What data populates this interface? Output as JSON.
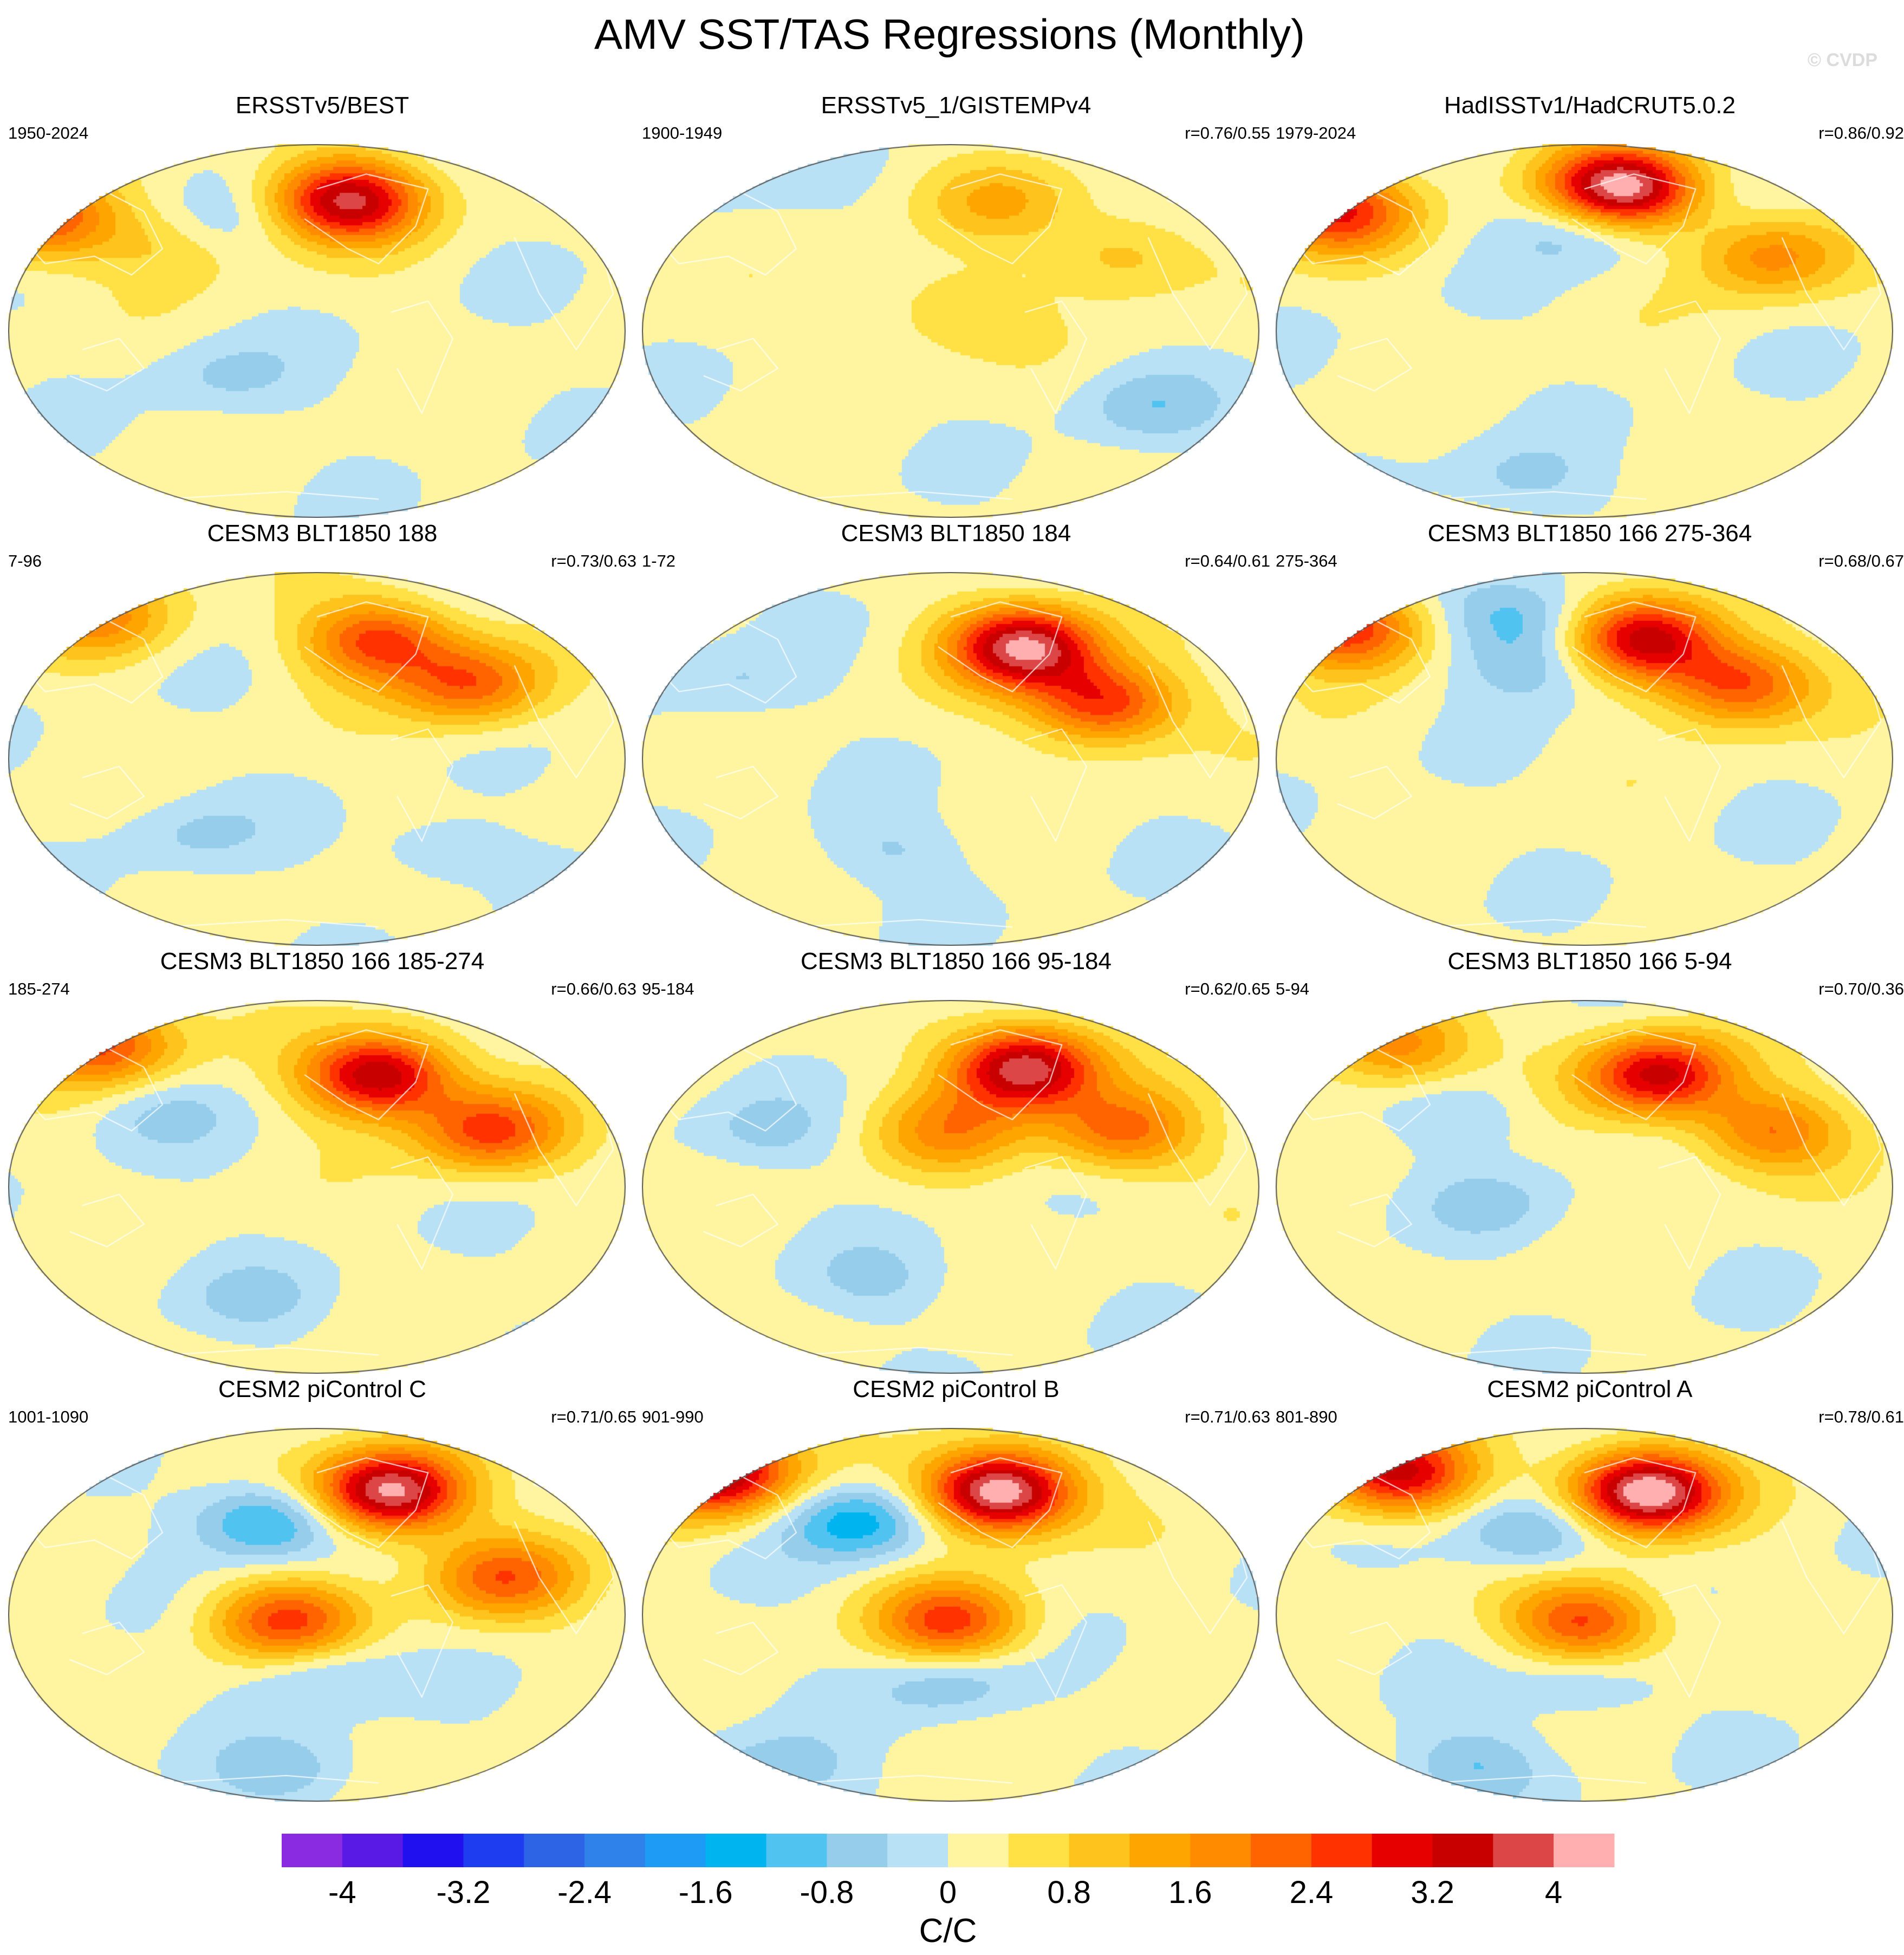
{
  "figure": {
    "title": "AMV SST/TAS Regressions (Monthly)",
    "watermark": "© CVDP"
  },
  "chart_data": {
    "type": "map_panels",
    "projection": "Robinson (Pacific-centered)",
    "variable": "AMV SST/TAS regression",
    "units": "C/C",
    "panels": [
      {
        "title": "ERSSTv5/BEST",
        "years": "1950-2024",
        "corr": "",
        "amp": 0.95,
        "hot": [
          [
            0.55,
            0.15,
            1.25
          ],
          [
            0.05,
            0.2,
            0.85
          ],
          [
            0.28,
            0.25,
            0.4
          ]
        ],
        "cold": [
          [
            0.32,
            0.22,
            0.5
          ],
          [
            0.35,
            0.62,
            0.3
          ]
        ]
      },
      {
        "title": "ERSSTv5_1/GISTEMPv4",
        "years": "1900-1949",
        "corr": "r=0.76/0.55",
        "amp": 0.55,
        "hot": [
          [
            0.58,
            0.15,
            0.6
          ],
          [
            0.78,
            0.3,
            0.6
          ],
          [
            0.5,
            0.45,
            0.45
          ]
        ],
        "cold": [
          [
            0.1,
            0.05,
            0.45
          ],
          [
            0.82,
            0.7,
            0.4
          ]
        ]
      },
      {
        "title": "HadISSTv1/HadCRUT5.0.2",
        "years": "1979-2024",
        "corr": "r=0.86/0.92",
        "amp": 1.1,
        "hot": [
          [
            0.56,
            0.12,
            1.3
          ],
          [
            0.1,
            0.18,
            0.8
          ],
          [
            0.8,
            0.3,
            0.5
          ]
        ],
        "cold": [
          [
            0.5,
            0.22,
            0.6
          ],
          [
            0.4,
            0.9,
            0.35
          ]
        ]
      },
      {
        "title": "CESM3 BLT1850 188",
        "years": "7-96",
        "corr": "r=0.73/0.63",
        "amp": 0.9,
        "hot": [
          [
            0.6,
            0.18,
            0.9
          ],
          [
            0.75,
            0.3,
            0.8
          ],
          [
            0.15,
            0.12,
            0.6
          ]
        ],
        "cold": [
          [
            0.3,
            0.7,
            0.3
          ],
          [
            0.7,
            0.75,
            0.3
          ]
        ]
      },
      {
        "title": "CESM3 BLT1850 184",
        "years": "1-72",
        "corr": "r=0.64/0.61",
        "amp": 1.0,
        "hot": [
          [
            0.62,
            0.2,
            1.3
          ],
          [
            0.75,
            0.35,
            0.9
          ]
        ],
        "cold": [
          [
            0.15,
            0.3,
            0.3
          ],
          [
            0.4,
            0.75,
            0.3
          ]
        ]
      },
      {
        "title": "CESM3 BLT1850 166 275-364",
        "years": "275-364",
        "corr": "r=0.68/0.67",
        "amp": 1.0,
        "hot": [
          [
            0.6,
            0.18,
            1.1
          ],
          [
            0.12,
            0.15,
            0.9
          ],
          [
            0.75,
            0.3,
            0.8
          ]
        ],
        "cold": [
          [
            0.42,
            0.25,
            0.5
          ],
          [
            0.4,
            0.12,
            0.6
          ]
        ]
      },
      {
        "title": "CESM3 BLT1850 166 185-274",
        "years": "185-274",
        "corr": "r=0.66/0.63",
        "amp": 1.0,
        "hot": [
          [
            0.6,
            0.2,
            1.2
          ],
          [
            0.15,
            0.12,
            0.8
          ],
          [
            0.78,
            0.35,
            0.8
          ]
        ],
        "cold": [
          [
            0.25,
            0.3,
            0.3
          ],
          [
            0.4,
            0.8,
            0.3
          ]
        ]
      },
      {
        "title": "CESM3 BLT1850 166 95-184",
        "years": "95-184",
        "corr": "r=0.62/0.65",
        "amp": 1.0,
        "hot": [
          [
            0.62,
            0.18,
            1.3
          ],
          [
            0.5,
            0.35,
            0.5
          ],
          [
            0.78,
            0.35,
            0.7
          ]
        ],
        "cold": [
          [
            0.2,
            0.35,
            0.3
          ],
          [
            0.38,
            0.75,
            0.3
          ]
        ]
      },
      {
        "title": "CESM3 BLT1850 166 5-94",
        "years": "5-94",
        "corr": "r=0.70/0.36",
        "amp": 0.9,
        "hot": [
          [
            0.62,
            0.2,
            1.2
          ],
          [
            0.2,
            0.12,
            0.7
          ],
          [
            0.8,
            0.35,
            0.7
          ]
        ],
        "cold": [
          [
            0.3,
            0.3,
            0.3
          ],
          [
            0.35,
            0.55,
            0.3
          ]
        ]
      },
      {
        "title": "CESM2 piControl C",
        "years": "1001-1090",
        "corr": "r=0.71/0.65",
        "amp": 1.0,
        "hot": [
          [
            0.62,
            0.17,
            1.4
          ],
          [
            0.45,
            0.52,
            0.8
          ],
          [
            0.8,
            0.4,
            0.7
          ]
        ],
        "cold": [
          [
            0.42,
            0.25,
            0.9
          ],
          [
            0.5,
            0.65,
            0.5
          ],
          [
            0.45,
            0.92,
            0.4
          ]
        ]
      },
      {
        "title": "CESM2 piControl B",
        "years": "901-990",
        "corr": "r=0.71/0.63",
        "amp": 1.0,
        "hot": [
          [
            0.58,
            0.17,
            1.5
          ],
          [
            0.12,
            0.12,
            1.3
          ],
          [
            0.5,
            0.52,
            0.8
          ]
        ],
        "cold": [
          [
            0.35,
            0.25,
            0.9
          ],
          [
            0.5,
            0.68,
            0.5
          ],
          [
            0.22,
            0.92,
            0.5
          ]
        ]
      },
      {
        "title": "CESM2 piControl A",
        "years": "801-890",
        "corr": "r=0.78/0.61",
        "amp": 1.0,
        "hot": [
          [
            0.6,
            0.17,
            1.5
          ],
          [
            0.2,
            0.12,
            1.1
          ],
          [
            0.5,
            0.52,
            0.8
          ]
        ],
        "cold": [
          [
            0.42,
            0.28,
            0.7
          ],
          [
            0.5,
            0.68,
            0.4
          ],
          [
            0.32,
            0.9,
            0.5
          ]
        ]
      }
    ],
    "colorbar": {
      "label": "C/C",
      "range": [
        -4.4,
        4.4
      ],
      "step": 0.4,
      "tick_labels": [
        "-4",
        "-3.2",
        "-2.4",
        "-1.6",
        "-0.8",
        "0",
        "0.8",
        "1.6",
        "2.4",
        "3.2",
        "4"
      ],
      "colors": [
        "#8a2be2",
        "#5a1ae6",
        "#2010f0",
        "#1e3cf0",
        "#2d64e6",
        "#3082eb",
        "#1e9bf5",
        "#00b4f0",
        "#50c3f0",
        "#96cdeb",
        "#b9e1f5",
        "#fff5a0",
        "#ffe146",
        "#ffc31e",
        "#ffa500",
        "#ff8c00",
        "#ff6400",
        "#ff3200",
        "#e60000",
        "#c80000",
        "#dc4646",
        "#ffafaf"
      ]
    }
  }
}
